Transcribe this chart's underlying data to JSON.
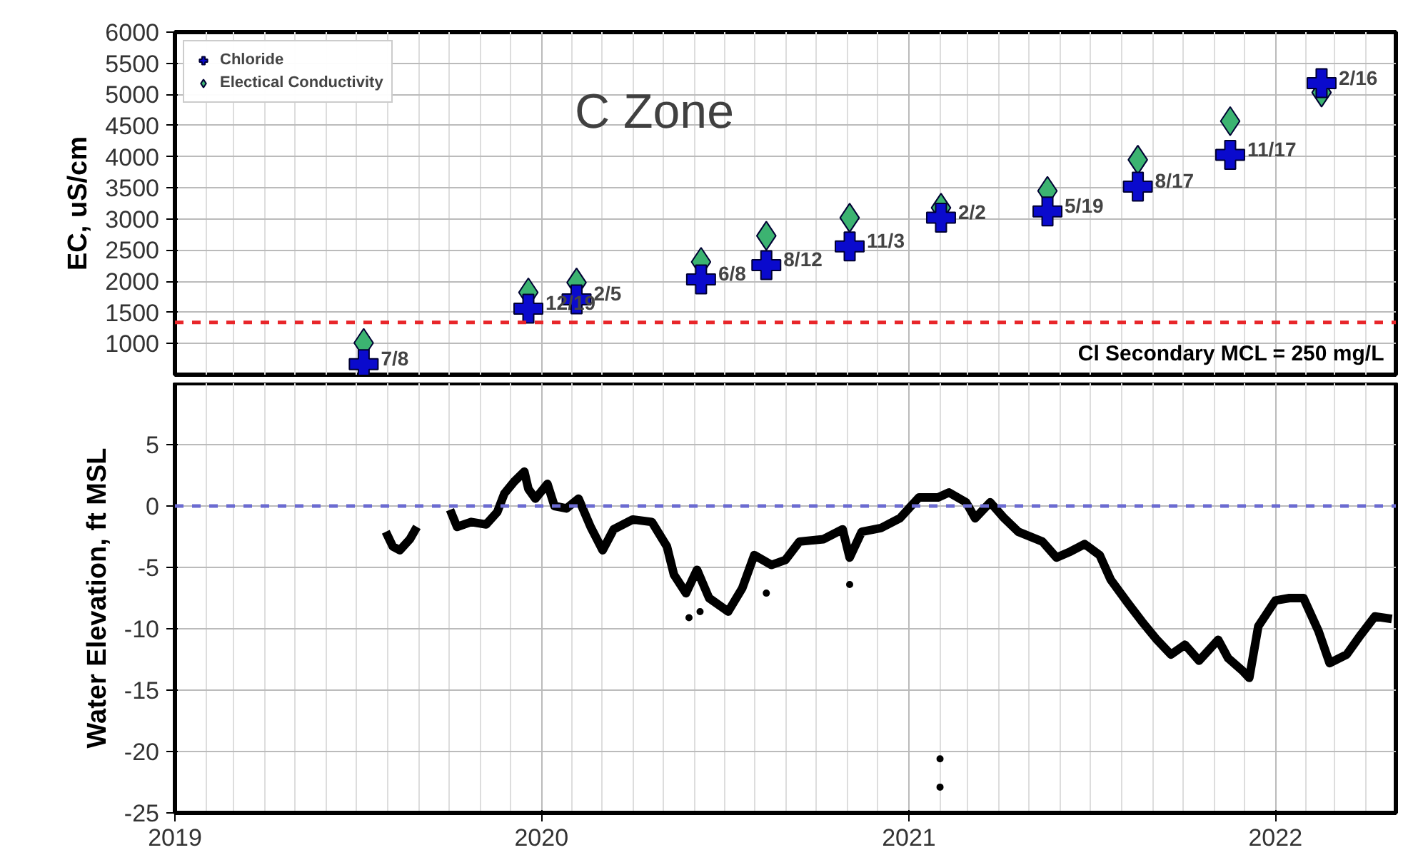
{
  "chart_data": [
    {
      "type": "scatter",
      "title": "C Zone",
      "ylabel": "EC, uS/cm",
      "xlim": [
        "2019-01-01",
        "2022-05-01"
      ],
      "ylim": [
        500,
        6000
      ],
      "yticks": [
        1000,
        1500,
        2000,
        2500,
        3000,
        3500,
        4000,
        4500,
        5000,
        5500,
        6000
      ],
      "xticks": [
        "2020",
        "2021",
        "2022"
      ],
      "tick_labels": "y",
      "grid": true,
      "legend": "top left",
      "x": [
        "2019-07-08",
        "2019-12-19",
        "2020-02-05",
        "2020-06-08",
        "2020-08-12",
        "2020-11-03",
        "2021-02-02",
        "2021-05-19",
        "2021-08-17",
        "2021-11-17",
        "2022-02-16"
      ],
      "series": [
        {
          "name": "Chloride",
          "color": "#0a0acd",
          "marker": "cross",
          "values": [
            670,
            1560,
            1710,
            2030,
            2260,
            2560,
            3020,
            3120,
            3520,
            4030,
            5180
          ]
        },
        {
          "name": "Electical Conductivity",
          "color": "#3cb371",
          "marker": "diamond",
          "values": [
            1010,
            1820,
            1980,
            2310,
            2730,
            3020,
            3180,
            3450,
            3950,
            4570,
            5030
          ]
        }
      ],
      "ref_lines": [
        {
          "axis": "y",
          "value": 1340,
          "color": "#e8262a",
          "line_style": "dashed"
        }
      ],
      "annotations": [
        "Cl Secondary MCL = 250 mg/L",
        {
          "text": "7/8",
          "x": "2019-07-08",
          "y": 670
        },
        {
          "text": "12/19",
          "x": "2019-12-19",
          "y": 1560
        },
        {
          "text": "2/5",
          "x": "2020-02-05",
          "y": 1710
        },
        {
          "text": "6/8",
          "x": "2020-06-08",
          "y": 2030
        },
        {
          "text": "8/12",
          "x": "2020-08-12",
          "y": 2260
        },
        {
          "text": "11/3",
          "x": "2020-11-03",
          "y": 2560
        },
        {
          "text": "2/2",
          "x": "2021-02-02",
          "y": 3020
        },
        {
          "text": "5/19",
          "x": "2021-05-19",
          "y": 3120
        },
        {
          "text": "8/17",
          "x": "2021-08-17",
          "y": 3520
        },
        {
          "text": "11/17",
          "x": "2021-11-17",
          "y": 4030
        },
        {
          "text": "2/16",
          "x": "2022-02-16",
          "y": 5180
        }
      ]
    },
    {
      "type": "line",
      "ylabel": "Water Elevation, ft MSL",
      "xlim": [
        "2019-01-01",
        "2022-05-01"
      ],
      "ylim": [
        -25,
        10
      ],
      "yticks": [
        -25,
        -20,
        -15,
        -10,
        -5,
        0,
        5
      ],
      "xticks": [
        {
          "value": "2019",
          "label": "2019"
        },
        "2020",
        "2021",
        "2022"
      ],
      "grid": true,
      "legend": false,
      "line_style": "solid",
      "series": [
        {
          "color": "#000000",
          "x": [
            "2019-07-30",
            "2019-08-06",
            "2019-08-13",
            "2019-08-23",
            "2019-08-30",
            "2019-09-15",
            "2019-10-02",
            "2019-10-09",
            "2019-10-23",
            "2019-11-07",
            "2019-11-18",
            "2019-11-25",
            "2019-12-05",
            "2019-12-15",
            "2019-12-19",
            "2019-12-26",
            "2020-01-07",
            "2020-01-14",
            "2020-01-26",
            "2020-02-07",
            "2020-02-19",
            "2020-03-02",
            "2020-03-13",
            "2020-04-01",
            "2020-04-20",
            "2020-05-05",
            "2020-05-12",
            "2020-05-24",
            "2020-06-04",
            "2020-06-16",
            "2020-07-05",
            "2020-07-19",
            "2020-07-31",
            "2020-08-17",
            "2020-08-31",
            "2020-09-14",
            "2020-10-08",
            "2020-10-27",
            "2020-11-03",
            "2020-11-15",
            "2020-12-04",
            "2020-12-23",
            "2021-01-11",
            "2021-01-30",
            "2021-02-10",
            "2021-02-27",
            "2021-03-08",
            "2021-03-23",
            "2021-04-06",
            "2021-04-20",
            "2021-05-14",
            "2021-05-28",
            "2021-06-11",
            "2021-06-25",
            "2021-07-10",
            "2021-07-21",
            "2021-08-07",
            "2021-08-21",
            "2021-09-05",
            "2021-09-19",
            "2021-10-03",
            "2021-10-17",
            "2021-11-05",
            "2021-11-15",
            "2021-11-29",
            "2021-12-06",
            "2021-12-15",
            "2022-01-01",
            "2022-01-15",
            "2022-01-29",
            "2022-02-13",
            "2022-02-24",
            "2022-03-13",
            "2022-03-27",
            "2022-04-10",
            "2022-04-27"
          ],
          "values": [
            -2.1,
            -3.3,
            -3.6,
            -2.7,
            -1.7,
            null,
            -0.3,
            -1.7,
            -1.3,
            -1.5,
            -0.5,
            1.0,
            2.0,
            2.8,
            1.4,
            0.6,
            1.8,
            0.0,
            -0.2,
            0.6,
            -1.7,
            -3.6,
            -1.9,
            -1.1,
            -1.3,
            -3.3,
            -5.6,
            -7.1,
            -5.2,
            -7.5,
            -8.6,
            -6.7,
            -4.0,
            -4.8,
            -4.4,
            -2.9,
            -2.7,
            -1.9,
            -4.2,
            -2.1,
            -1.8,
            -1.0,
            0.7,
            0.7,
            1.1,
            0.3,
            -1.0,
            0.3,
            -1.0,
            -2.1,
            -2.9,
            -4.2,
            -3.7,
            -3.1,
            -4.0,
            -6.0,
            -7.9,
            -9.4,
            -10.9,
            -12.1,
            -11.3,
            -12.6,
            -10.9,
            -12.4,
            -13.4,
            -14.0,
            -9.8,
            -7.7,
            -7.5,
            -7.5,
            -10.2,
            -12.8,
            -12.1,
            -10.5,
            -9.0,
            -9.2
          ]
        },
        {
          "type": "scatter",
          "color": "#000000",
          "marker": "circle",
          "x": [
            "2020-05-27",
            "2020-06-07",
            "2020-08-12",
            "2020-11-03",
            "2021-02-01",
            "2021-02-01"
          ],
          "values": [
            -9.1,
            -8.6,
            -7.1,
            -6.4,
            -20.6,
            -22.9
          ]
        }
      ],
      "ref_lines": [
        {
          "axis": "y",
          "value": 0,
          "color": "#6b6bd1",
          "line_style": "dashed"
        }
      ]
    }
  ]
}
